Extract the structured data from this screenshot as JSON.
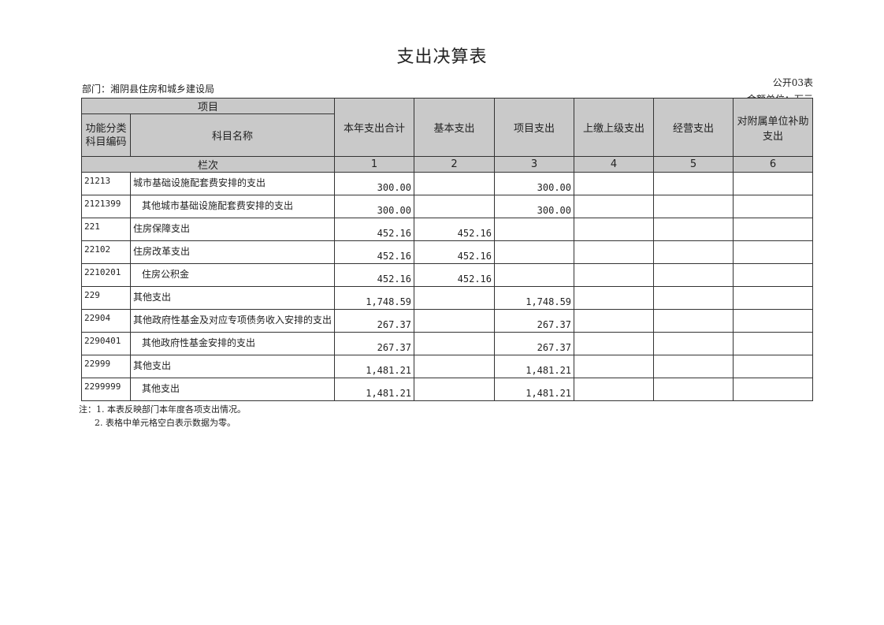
{
  "title": "支出决算表",
  "department": "部门：湘阴县住房和城乡建设局",
  "form_no": "公开03表",
  "unit": "金额单位：万元",
  "header": {
    "project": "项目",
    "code": "功能分类科目编码",
    "name": "科目名称",
    "columns": [
      "本年支出合计",
      "基本支出",
      "项目支出",
      "上缴上级支出",
      "经营支出",
      "对附属单位补助支出"
    ],
    "row_label": "栏次",
    "column_numbers": [
      "1",
      "2",
      "3",
      "4",
      "5",
      "6"
    ]
  },
  "rows": [
    {
      "code": "21213",
      "name": "城市基础设施配套费安排的支出",
      "indent": false,
      "values": [
        "300.00",
        "",
        "300.00",
        "",
        "",
        ""
      ]
    },
    {
      "code": "2121399",
      "name": "其他城市基础设施配套费安排的支出",
      "indent": true,
      "values": [
        "300.00",
        "",
        "300.00",
        "",
        "",
        ""
      ]
    },
    {
      "code": "221",
      "name": "住房保障支出",
      "indent": false,
      "values": [
        "452.16",
        "452.16",
        "",
        "",
        "",
        ""
      ]
    },
    {
      "code": "22102",
      "name": "住房改革支出",
      "indent": false,
      "values": [
        "452.16",
        "452.16",
        "",
        "",
        "",
        ""
      ]
    },
    {
      "code": "2210201",
      "name": "住房公积金",
      "indent": true,
      "values": [
        "452.16",
        "452.16",
        "",
        "",
        "",
        ""
      ]
    },
    {
      "code": "229",
      "name": "其他支出",
      "indent": false,
      "values": [
        "1,748.59",
        "",
        "1,748.59",
        "",
        "",
        ""
      ]
    },
    {
      "code": "22904",
      "name": "其他政府性基金及对应专项债务收入安排的支出",
      "indent": false,
      "values": [
        "267.37",
        "",
        "267.37",
        "",
        "",
        ""
      ]
    },
    {
      "code": "2290401",
      "name": "其他政府性基金安排的支出",
      "indent": true,
      "values": [
        "267.37",
        "",
        "267.37",
        "",
        "",
        ""
      ]
    },
    {
      "code": "22999",
      "name": "其他支出",
      "indent": false,
      "values": [
        "1,481.21",
        "",
        "1,481.21",
        "",
        "",
        ""
      ]
    },
    {
      "code": "2299999",
      "name": "其他支出",
      "indent": true,
      "values": [
        "1,481.21",
        "",
        "1,481.21",
        "",
        "",
        ""
      ]
    }
  ],
  "notes": [
    "注：1. 本表反映部门本年度各项支出情况。",
    "2. 表格中单元格空白表示数据为零。"
  ]
}
